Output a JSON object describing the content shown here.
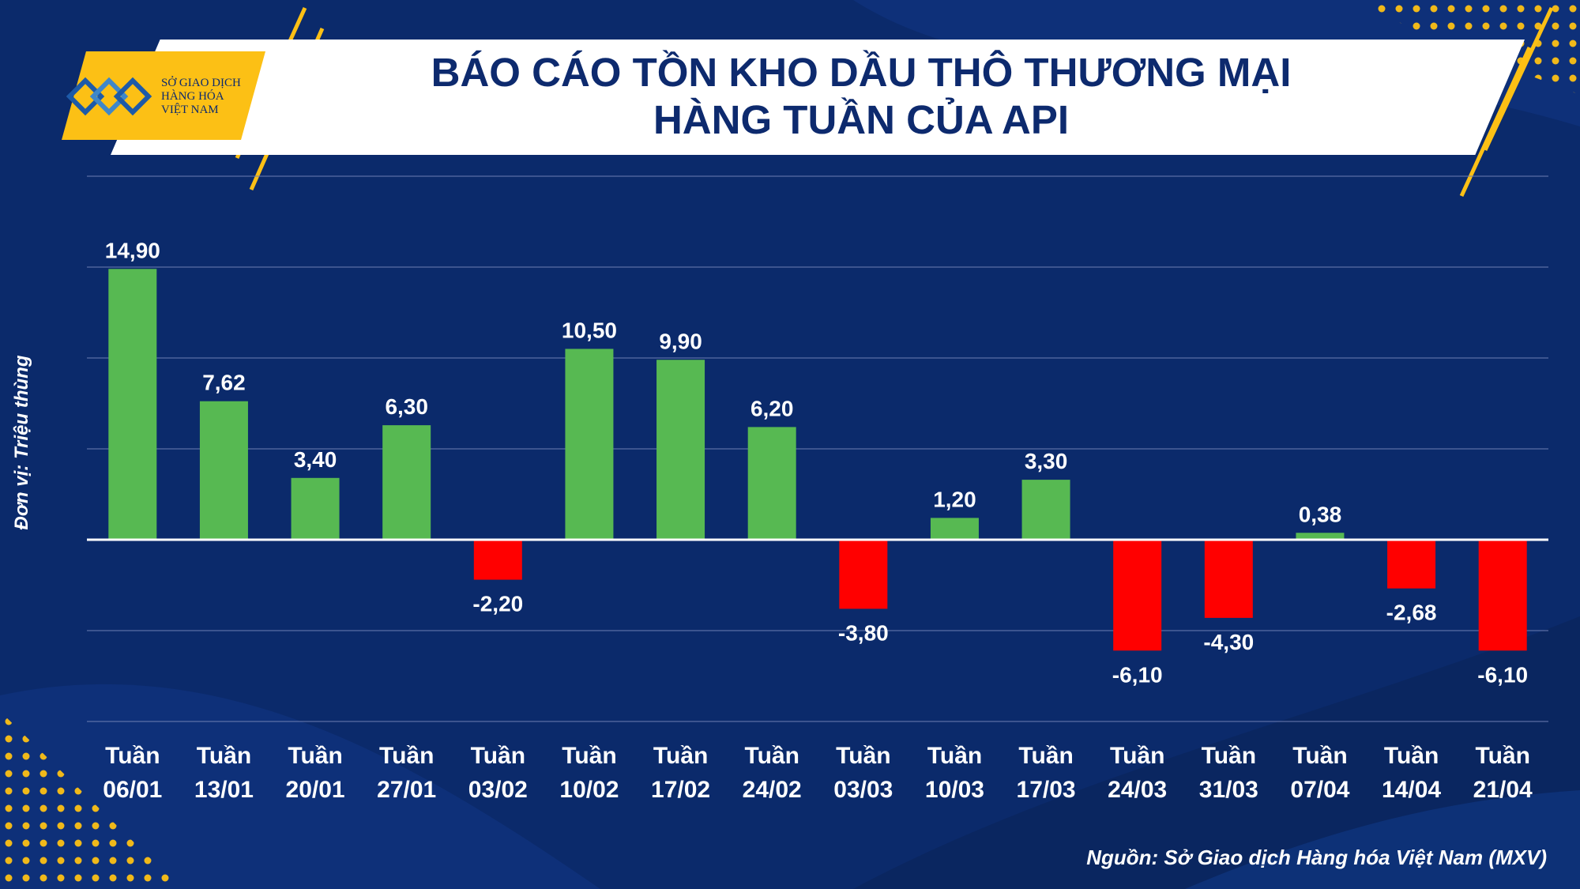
{
  "header": {
    "title_line1": "BÁO CÁO TỒN KHO DẦU THÔ THƯƠNG MẠI",
    "title_line2": "HÀNG TUẦN CỦA API"
  },
  "logo": {
    "line1": "SỞ GIAO DỊCH",
    "line2": "HÀNG HÓA",
    "line3": "VIỆT NAM"
  },
  "source": "Nguồn: Sở Giao dịch Hàng hóa Việt Nam (MXV)",
  "colors": {
    "background": "#0b2a6b",
    "positive": "#57b952",
    "negative": "#ff0000",
    "accent": "#fcc015",
    "text": "#ffffff"
  },
  "chart_data": {
    "type": "bar",
    "title": "BÁO CÁO TỒN KHO DẦU THÔ THƯƠNG MẠI HÀNG TUẦN CỦA API",
    "ylabel": "Đơn vị: Triệu thùng",
    "xlabel": "",
    "ylim": [
      -10,
      20
    ],
    "grid": true,
    "category_prefix": "Tuần",
    "categories": [
      "06/01",
      "13/01",
      "20/01",
      "27/01",
      "03/02",
      "10/02",
      "17/02",
      "24/02",
      "03/03",
      "10/03",
      "17/03",
      "24/03",
      "31/03",
      "07/04",
      "14/04",
      "21/04"
    ],
    "values": [
      14.9,
      7.62,
      3.4,
      6.3,
      -2.2,
      10.5,
      9.9,
      6.2,
      -3.8,
      1.2,
      3.3,
      -6.1,
      -4.3,
      0.38,
      -2.68,
      -6.1
    ],
    "value_labels": [
      "14,90",
      "7,62",
      "3,40",
      "6,30",
      "-2,20",
      "10,50",
      "9,90",
      "6,20",
      "-3,80",
      "1,20",
      "3,30",
      "-6,10",
      "-4,30",
      "0,38",
      "-2,68",
      "-6,10"
    ]
  }
}
